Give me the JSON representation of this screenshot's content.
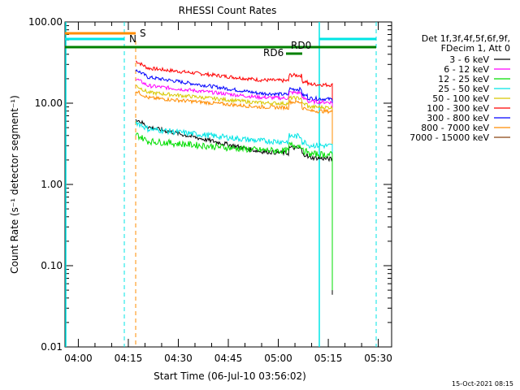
{
  "chart_data": {
    "type": "line",
    "title": "RHESSI Count Rates",
    "xlabel": "Start Time (06-Jul-10 03:56:02)",
    "ylabel": "Count Rate (s⁻¹ detector segment⁻¹)",
    "yscale": "log",
    "ylim": [
      0.01,
      100
    ],
    "xlim_minutes": [
      "03:56",
      "05:34"
    ],
    "y_ticks": [
      "0.01",
      "0.10",
      "1.00",
      "10.00",
      "100.00"
    ],
    "x_ticks": [
      "04:00",
      "04:15",
      "04:30",
      "04:45",
      "05:00",
      "05:15",
      "05:30"
    ],
    "legend": {
      "header": [
        "Det 1f,3f,4f,5f,6f,9f,",
        "FDecim 1, Att 0"
      ],
      "entries": [
        {
          "label": "3 - 6 keV",
          "color": "#000000"
        },
        {
          "label": "6 - 12 keV",
          "color": "#ff00ff"
        },
        {
          "label": "12 - 25 keV",
          "color": "#00dd00"
        },
        {
          "label": "25 - 50 keV",
          "color": "#00e5e5"
        },
        {
          "label": "50 - 100 keV",
          "color": "#d8c800"
        },
        {
          "label": "100 - 300 keV",
          "color": "#ff0000"
        },
        {
          "label": "300 - 800 keV",
          "color": "#0000ff"
        },
        {
          "label": "800 - 7000 keV",
          "color": "#ff8c00"
        },
        {
          "label": "7000 - 15000 keV",
          "color": "#8b4513"
        }
      ]
    },
    "series": [
      {
        "color": "#ff0000",
        "start": 28,
        "end": 18,
        "noise": 0.05
      },
      {
        "color": "#0000ff",
        "start": 22,
        "end": 12,
        "noise": 0.05
      },
      {
        "color": "#ff00ff",
        "start": 17,
        "end": 11,
        "noise": 0.05
      },
      {
        "color": "#d8c800",
        "start": 14,
        "end": 9.5,
        "noise": 0.05
      },
      {
        "color": "#ff8c00",
        "start": 12,
        "end": 8.5,
        "noise": 0.05
      },
      {
        "color": "#000000",
        "start": 5.5,
        "end": 2.2,
        "noise": 0.06
      },
      {
        "color": "#00e5e5",
        "start": 5,
        "end": 3.2,
        "noise": 0.08
      },
      {
        "color": "#00dd00",
        "start": 3.5,
        "end": 2.5,
        "noise": 0.09
      }
    ],
    "annotations": [
      {
        "label": "S",
        "color": "#ff8c00"
      },
      {
        "label": "N",
        "color": "#00e5e5"
      },
      {
        "label": "RD6",
        "color": "#008000"
      },
      {
        "label": "RD0",
        "color": "#008000"
      }
    ],
    "timestamp": "15-Oct-2021 08:15"
  }
}
